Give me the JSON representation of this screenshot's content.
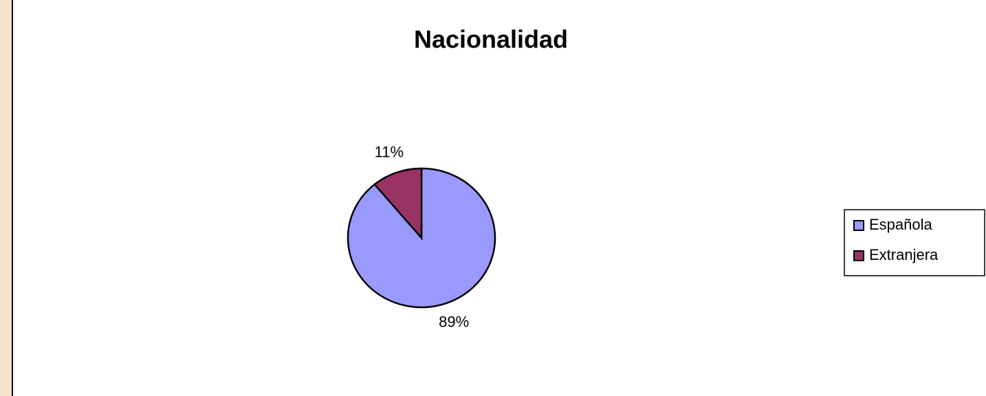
{
  "chart_data": {
    "type": "pie",
    "title": "Nacionalidad",
    "categories": [
      "Española",
      "Extranjera"
    ],
    "values": [
      89,
      11
    ],
    "value_labels": [
      "89%",
      "11%"
    ],
    "colors": [
      "#9999ff",
      "#993366"
    ],
    "legend": "right"
  }
}
